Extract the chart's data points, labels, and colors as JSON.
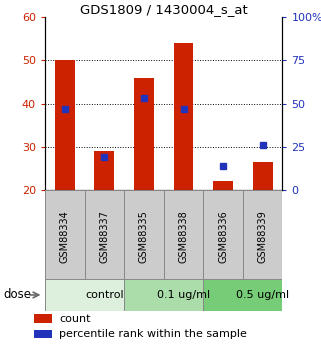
{
  "title": "GDS1809 / 1430004_s_at",
  "samples": [
    "GSM88334",
    "GSM88337",
    "GSM88335",
    "GSM88338",
    "GSM88336",
    "GSM88339"
  ],
  "count_values": [
    50.0,
    29.0,
    46.0,
    54.0,
    22.0,
    26.5
  ],
  "percentile_values": [
    47,
    19,
    53,
    47,
    14,
    26
  ],
  "ymin": 20,
  "ymax": 60,
  "y2min": 0,
  "y2max": 100,
  "bar_color": "#cc2200",
  "dot_color": "#2233bb",
  "grid_values": [
    30,
    40,
    50
  ],
  "groups": [
    {
      "label": "control",
      "start": 0,
      "end": 2,
      "color": "#ddf0dd"
    },
    {
      "label": "0.1 ug/ml",
      "start": 2,
      "end": 4,
      "color": "#aaddaa"
    },
    {
      "label": "0.5 ug/ml",
      "start": 4,
      "end": 6,
      "color": "#77cc77"
    }
  ],
  "legend_count_label": "count",
  "legend_pct_label": "percentile rank within the sample",
  "dose_label": "dose",
  "sample_box_color": "#cccccc",
  "bar_width": 0.5
}
